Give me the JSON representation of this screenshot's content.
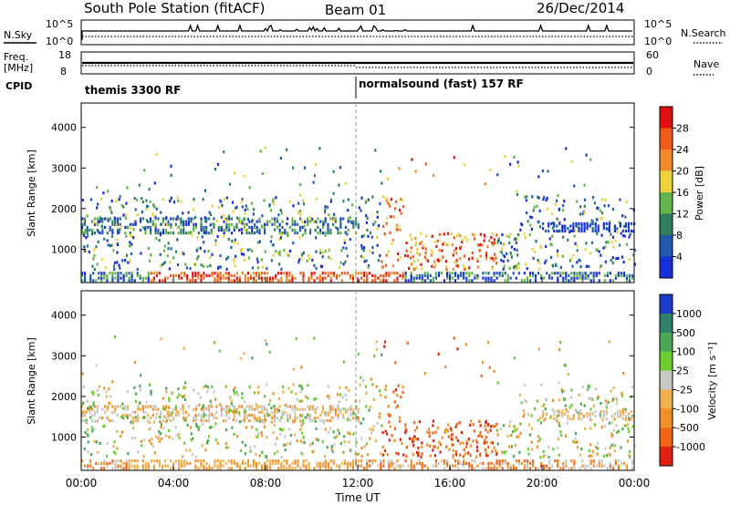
{
  "header": {
    "title": "South Pole Station (fitACF)",
    "beam": "Beam 01",
    "date": "26/Dec/2014"
  },
  "noise_panel": {
    "left_label": "N.Sky",
    "right_label": "N.Search",
    "left_ticks": [
      "10^5",
      "10^0"
    ],
    "right_ticks": [
      "10^5",
      "10^0"
    ]
  },
  "freq_panel": {
    "left_label_line1": "Freq.",
    "left_label_line2": "[MHz]",
    "right_label": "Nave",
    "left_ticks": [
      "18",
      "8"
    ],
    "right_ticks": [
      "60",
      "0"
    ]
  },
  "cpid": {
    "label": "CPID",
    "segments": [
      {
        "text": "themis 3300 RF",
        "start_hour": 0
      },
      {
        "text": "normalsound (fast) 157 RF",
        "start_hour": 12
      }
    ]
  },
  "chart_data": [
    {
      "type": "heatmap",
      "quantity": "Power",
      "ylabel": "Slant Range [km]",
      "xlabel": "",
      "x_range_hours": [
        0,
        24
      ],
      "ylim": [
        180,
        4600
      ],
      "y_ticks": [
        1000,
        2000,
        3000,
        4000
      ],
      "colorbar": {
        "label": "Power [dB]",
        "ticks": [
          "4",
          "8",
          "12",
          "16",
          "20",
          "24",
          "28"
        ],
        "colors": [
          "#1a2ed8",
          "#1f5ab0",
          "#2f8060",
          "#62b54a",
          "#ecd23c",
          "#f08a2a",
          "#ee5a1c",
          "#e01010"
        ]
      }
    },
    {
      "type": "heatmap",
      "quantity": "Velocity",
      "ylabel": "Slant Range [km]",
      "xlabel": "Time UT",
      "x_range_hours": [
        0,
        24
      ],
      "ylim": [
        180,
        4600
      ],
      "y_ticks": [
        1000,
        2000,
        3000,
        4000
      ],
      "x_ticks": [
        "00:00",
        "04:00",
        "08:00",
        "12:00",
        "16:00",
        "20:00",
        "00:00"
      ],
      "colorbar": {
        "label": "Velocity [m s⁻¹]",
        "ticks": [
          "1000",
          "500",
          "100",
          "25",
          "-25",
          "-100",
          "-500",
          "-1000"
        ],
        "colors": [
          "#1a3cc8",
          "#2e8068",
          "#4aa858",
          "#6ccd30",
          "#c8c8c4",
          "#f0b050",
          "#f09028",
          "#f06418",
          "#e02010"
        ]
      }
    }
  ]
}
